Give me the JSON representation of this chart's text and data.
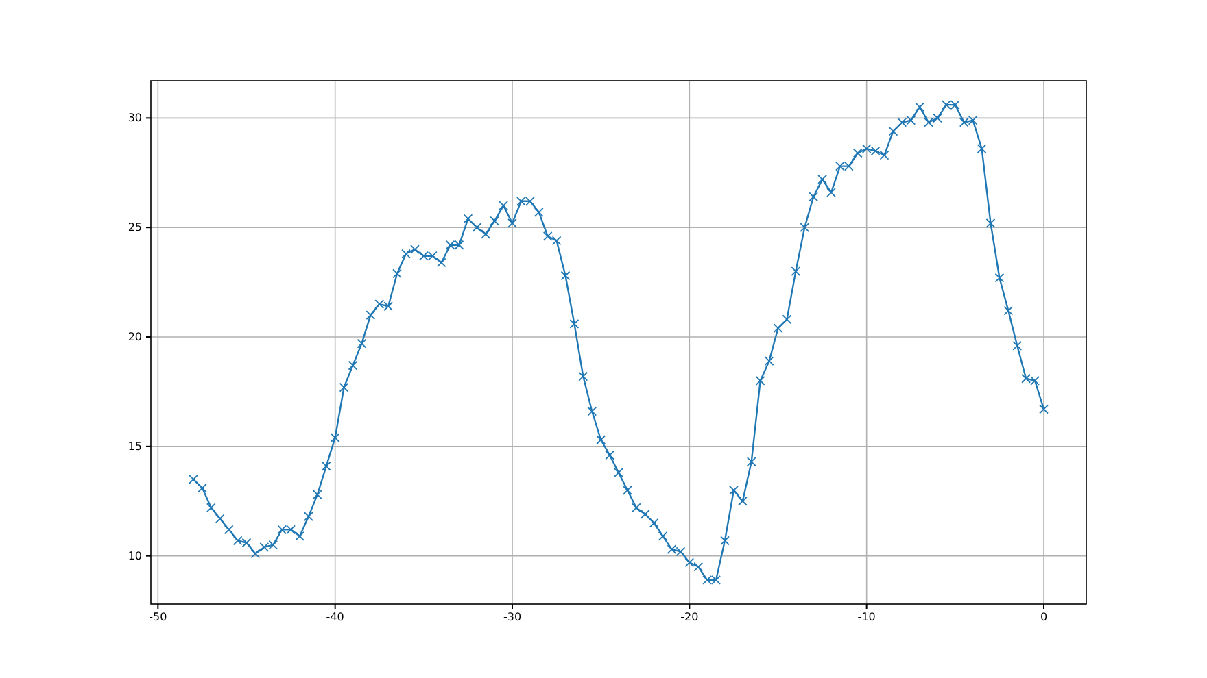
{
  "chart_data": {
    "type": "line",
    "x": [
      -48,
      -47.5,
      -47,
      -46.5,
      -46,
      -45.5,
      -45,
      -44.5,
      -44,
      -43.5,
      -43,
      -42.5,
      -42,
      -41.5,
      -41,
      -40.5,
      -40,
      -39.5,
      -39,
      -38.5,
      -38,
      -37.5,
      -37,
      -36.5,
      -36,
      -35.5,
      -35,
      -34.5,
      -34,
      -33.5,
      -33,
      -32.5,
      -32,
      -31.5,
      -31,
      -30.5,
      -30,
      -29.5,
      -29,
      -28.5,
      -28,
      -27.5,
      -27,
      -26.5,
      -26,
      -25.5,
      -25,
      -24.5,
      -24,
      -23.5,
      -23,
      -22.5,
      -22,
      -21.5,
      -21,
      -20.5,
      -20,
      -19.5,
      -19,
      -18.5,
      -18,
      -17.5,
      -17,
      -16.5,
      -16,
      -15.5,
      -15,
      -14.5,
      -14,
      -13.5,
      -13,
      -12.5,
      -12,
      -11.5,
      -11,
      -10.5,
      -10,
      -9.5,
      -9,
      -8.5,
      -8,
      -7.5,
      -7,
      -6.5,
      -6,
      -5.5,
      -5,
      -4.5,
      -4,
      -3.5,
      -3,
      -2.5,
      -2,
      -1.5,
      -1,
      -0.5,
      0
    ],
    "series": [
      {
        "color": "#1f77b4",
        "values": [
          13.5,
          13.1,
          12.2,
          11.7,
          11.2,
          10.7,
          10.6,
          10.1,
          10.4,
          10.5,
          11.2,
          11.2,
          10.9,
          11.8,
          12.8,
          14.1,
          15.4,
          17.7,
          18.7,
          19.7,
          21.0,
          21.5,
          21.4,
          22.9,
          23.8,
          24.0,
          23.7,
          23.7,
          23.4,
          24.2,
          24.2,
          25.4,
          25.0,
          24.7,
          25.3,
          26.0,
          25.2,
          26.2,
          26.2,
          25.7,
          24.6,
          24.4,
          22.8,
          20.6,
          18.2,
          16.6,
          15.3,
          14.6,
          13.8,
          13.0,
          12.2,
          11.9,
          11.5,
          10.9,
          10.3,
          10.2,
          9.7,
          9.5,
          8.9,
          8.9,
          10.7,
          13.0,
          12.5,
          14.3,
          18.0,
          18.9,
          20.4,
          20.8,
          23.0,
          25.0,
          26.4,
          27.2,
          26.6,
          27.8,
          27.8,
          28.4,
          28.6,
          28.5,
          28.3,
          29.4,
          29.8,
          29.9,
          30.5,
          29.8,
          30.0,
          30.6,
          30.6,
          29.8,
          29.9,
          28.6,
          25.2,
          22.7,
          21.2,
          19.6,
          18.1,
          18.0,
          16.7
        ]
      }
    ],
    "xlim": [
      -50.4,
      2.4
    ],
    "ylim": [
      7.8,
      31.7
    ],
    "xticks": [
      -50,
      -40,
      -30,
      -20,
      -10,
      0
    ],
    "yticks": [
      10,
      15,
      20,
      25,
      30
    ],
    "grid": true,
    "marker": "cross",
    "line_style": "solid"
  }
}
